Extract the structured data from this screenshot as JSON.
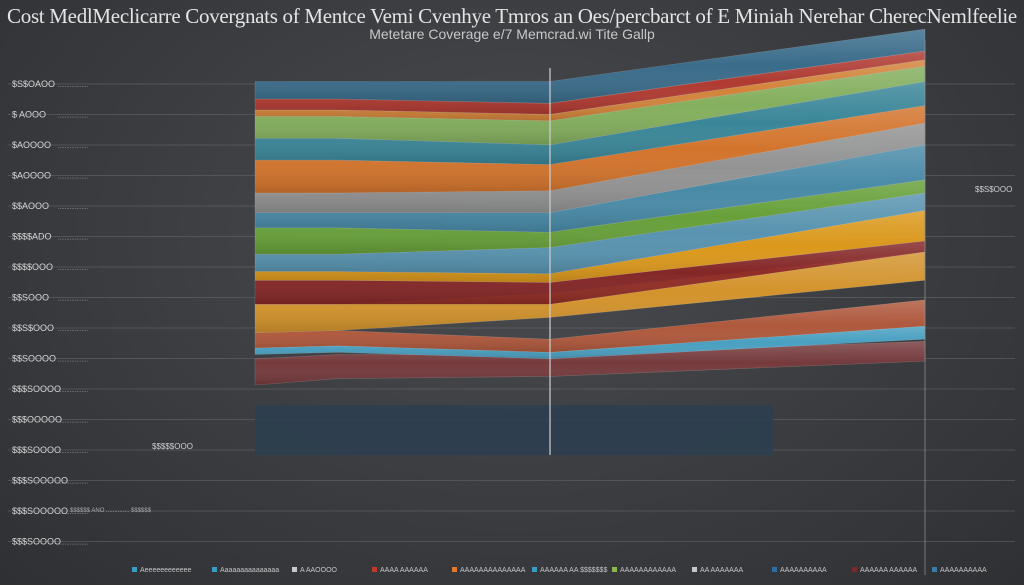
{
  "chart_data": {
    "type": "area",
    "title": "Cost MedlMeclicarre Covergnats of Mentce Vemi Cvenhye Tmros an Oes/percbarct of E Miniah Nerehar CherecNemlfeelie",
    "subtitle": "Metetare Coverage e/7 Memcrad.wi Tite Gallp",
    "y_tick_labels": [
      "$S$OAOO",
      "$ AOOO",
      "$AOOOO",
      "$AOOOO",
      "$$AOOO",
      "$$$$ADO",
      "$$$$OOO",
      "$$SOOO",
      "$$S$OOO",
      "$$SOOOO",
      "$$$SOOOO",
      "$$$OOOOO",
      "$$$SOOOO",
      "$$$SOOOOO",
      "$$$SOOOOO",
      "$$$SOOOO"
    ],
    "y_tick_labels_display": [
      "$S$OAOO",
      "$ AOOO",
      "$AOOOO",
      "$AOOOO",
      "$$AOOO",
      "$$$$ADO",
      "$$$$OOO",
      "$$SOOO",
      "$$S$OOO",
      "$$SOOOO",
      "$$$SOOOO",
      "$$$OOOOO",
      "$$$SOOOO",
      "$$$SOOOOO",
      "$$$SOOOOO",
      "$$$SOOOO"
    ],
    "annotations": {
      "right_value": "$$S$OOO",
      "lower_value": "$$$$$OOO",
      "bottom_note": "$$$$$$ ANO  ..............  $$$$$$"
    },
    "legend": [
      {
        "label": "Aeeeeeeeeeeee",
        "color": "#3a9cc0"
      },
      {
        "label": "Aaaaaaaaaaaaaaa",
        "color": "#3a9cc0"
      },
      {
        "label": "A AAOOOO",
        "color": "#c8c8c8"
      },
      {
        "label": "AAAA AAAAAA",
        "color": "#c0392b"
      },
      {
        "label": "AAAAAAAAAAAAAA",
        "color": "#e07a2a"
      },
      {
        "label": "AAAAAA AA $$$$$$$",
        "color": "#3a9cc0"
      },
      {
        "label": "AAAAAAAAAAAA",
        "color": "#8ab84a"
      },
      {
        "label": "AA AAAAAAA",
        "color": "#c8c8c8"
      },
      {
        "label": "AAAAAAAAAA",
        "color": "#2e6da4"
      },
      {
        "label": "AAAAAA AAAAAA",
        "color": "#7a2a2a"
      },
      {
        "label": "AAAAAAAAAA",
        "color": "#3a7ca8"
      }
    ],
    "series": [
      {
        "color": "#7a3a3c",
        "values": [
          [
            3.2,
            3.5,
            3.6,
            4.3
          ],
          [
            1.2,
            1.1,
            1.0,
            0.9
          ]
        ]
      },
      {
        "color": "#4aa8cc",
        "values": [
          [
            4.6,
            4.7,
            4.4,
            5.3
          ],
          [
            0.3,
            0.3,
            0.3,
            0.6
          ]
        ]
      },
      {
        "color": "#b85a3c",
        "values": [
          [
            4.9,
            5.0,
            4.7,
            5.9
          ],
          [
            0.7,
            0.7,
            0.6,
            1.2
          ]
        ]
      },
      {
        "color": "#e09a2a",
        "values": [
          [
            5.6,
            5.7,
            6.3,
            8.0
          ],
          [
            1.3,
            1.2,
            1.1,
            1.3
          ]
        ]
      },
      {
        "color": "#8a2424",
        "values": [
          [
            6.9,
            6.9,
            6.9,
            9.3
          ],
          [
            1.1,
            1.1,
            1.0,
            0.5
          ]
        ]
      },
      {
        "color": "#e8a018",
        "values": [
          [
            8.0,
            8.0,
            7.9,
            9.8
          ],
          [
            0.4,
            0.4,
            0.4,
            1.4
          ]
        ]
      },
      {
        "color": "#5a9ab8",
        "values": [
          [
            8.4,
            8.4,
            8.3,
            11.2
          ],
          [
            0.8,
            0.8,
            1.2,
            0.8
          ]
        ]
      },
      {
        "color": "#6aa838",
        "values": [
          [
            9.2,
            9.2,
            9.5,
            12.0
          ],
          [
            1.2,
            1.2,
            0.7,
            0.6
          ]
        ]
      },
      {
        "color": "#4a90b0",
        "values": [
          [
            10.4,
            10.4,
            10.2,
            12.6
          ],
          [
            0.7,
            0.7,
            0.9,
            1.6
          ]
        ]
      },
      {
        "color": "#9a9a9a",
        "values": [
          [
            11.1,
            11.1,
            11.1,
            14.2
          ],
          [
            0.9,
            0.9,
            1.0,
            1.0
          ]
        ]
      },
      {
        "color": "#e0782a",
        "values": [
          [
            12.0,
            12.0,
            12.1,
            15.2
          ],
          [
            1.5,
            1.5,
            1.2,
            0.8
          ]
        ]
      },
      {
        "color": "#3a8ca0",
        "values": [
          [
            13.5,
            13.5,
            13.3,
            16.0
          ],
          [
            1.0,
            1.0,
            0.9,
            1.1
          ]
        ]
      },
      {
        "color": "#8ab860",
        "values": [
          [
            14.5,
            14.5,
            14.2,
            17.1
          ],
          [
            1.0,
            1.0,
            1.1,
            0.7
          ]
        ]
      },
      {
        "color": "#e08a3a",
        "values": [
          [
            15.5,
            15.5,
            15.3,
            17.8
          ],
          [
            0.3,
            0.3,
            0.3,
            0.3
          ]
        ]
      },
      {
        "color": "#b83a30",
        "values": [
          [
            15.8,
            15.8,
            15.6,
            18.1
          ],
          [
            0.5,
            0.5,
            0.5,
            0.4
          ]
        ]
      },
      {
        "color": "#3a7090",
        "values": [
          [
            16.3,
            16.3,
            16.1,
            18.5
          ],
          [
            0.8,
            0.8,
            1.0,
            1.0
          ]
        ]
      }
    ],
    "x_points": [
      0,
      1,
      2,
      3
    ],
    "grid": true,
    "legend_position": "bottom"
  }
}
